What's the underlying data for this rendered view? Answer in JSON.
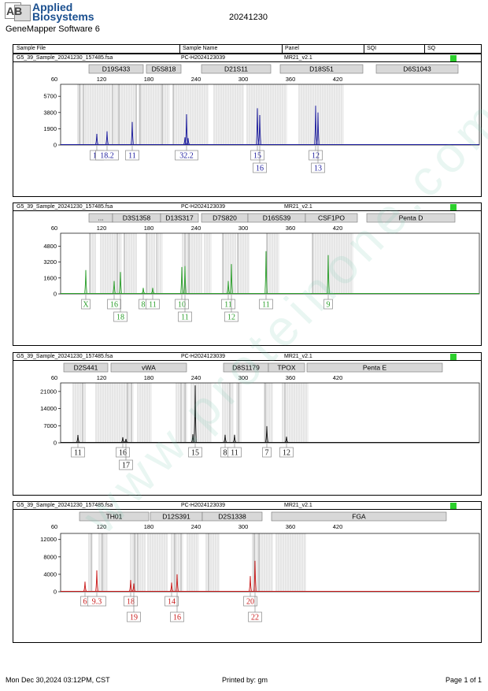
{
  "header": {
    "logo_text": "AB",
    "brand_line1": "Applied",
    "brand_line2": "Biosystems",
    "software": "GeneMapper Software 6",
    "date": "20241230",
    "columns": [
      "Sample File",
      "Sample Name",
      "Panel",
      "SQI",
      "SQ"
    ]
  },
  "footer": {
    "printed_on": "Mon Dec 30,2024 03:12PM, CST",
    "printed_by": "Printed by: gm",
    "page": "Page 1 of 1"
  },
  "watermark": "www.proteinone.com.cn",
  "chart_data": [
    {
      "type": "line",
      "sample_file": "G5_39_Sample_20241230_157485.fsa",
      "sample_name": "PC-H2024123039",
      "panel": "MR21_v2.1",
      "color": "#1a1a9c",
      "x_ticks": [
        60,
        120,
        180,
        240,
        300,
        360,
        420
      ],
      "y_ticks": [
        0,
        1900,
        3800,
        5700
      ],
      "ylim": [
        0,
        7100
      ],
      "markers": [
        "D19S433",
        "D5S818",
        "D21S11",
        "D18S51",
        "D6S1043"
      ],
      "peaks": [
        {
          "x": 114,
          "y": 1300
        },
        {
          "x": 127,
          "y": 1600
        },
        {
          "x": 159,
          "y": 2700
        },
        {
          "x": 226,
          "y": 900
        },
        {
          "x": 228,
          "y": 3600
        },
        {
          "x": 230,
          "y": 800
        },
        {
          "x": 318,
          "y": 4300
        },
        {
          "x": 321,
          "y": 3500
        },
        {
          "x": 392,
          "y": 4600
        },
        {
          "x": 395,
          "y": 3800
        }
      ],
      "alleles": [
        {
          "x": 114,
          "row": 0,
          "label": "15"
        },
        {
          "x": 127,
          "row": 0,
          "label": "18.2"
        },
        {
          "x": 159,
          "row": 0,
          "label": "11"
        },
        {
          "x": 228,
          "row": 0,
          "label": "32.2"
        },
        {
          "x": 318,
          "row": 0,
          "label": "15"
        },
        {
          "x": 321,
          "row": 1,
          "label": "16"
        },
        {
          "x": 392,
          "row": 0,
          "label": "12"
        },
        {
          "x": 395,
          "row": 1,
          "label": "13"
        }
      ]
    },
    {
      "type": "line",
      "sample_file": "G5_39_Sample_20241230_157485.fsa",
      "sample_name": "PC-H2024123039",
      "panel": "MR21_v2.1",
      "color": "#2a9e2a",
      "x_ticks": [
        60,
        120,
        180,
        240,
        300,
        360,
        420
      ],
      "y_ticks": [
        0,
        1600,
        3200,
        4800
      ],
      "ylim": [
        0,
        6100
      ],
      "markers": [
        "...",
        "D3S1358",
        "D13S317",
        "D7S820",
        "D16S539",
        "CSF1PO",
        "Penta D"
      ],
      "peaks": [
        {
          "x": 100,
          "y": 2400
        },
        {
          "x": 136,
          "y": 1300
        },
        {
          "x": 144,
          "y": 2200
        },
        {
          "x": 173,
          "y": 600
        },
        {
          "x": 185,
          "y": 600
        },
        {
          "x": 222,
          "y": 2700
        },
        {
          "x": 226,
          "y": 2800
        },
        {
          "x": 281,
          "y": 1300
        },
        {
          "x": 285,
          "y": 3000
        },
        {
          "x": 329,
          "y": 4300
        },
        {
          "x": 408,
          "y": 3900
        }
      ],
      "alleles": [
        {
          "x": 100,
          "row": 0,
          "label": "X"
        },
        {
          "x": 136,
          "row": 0,
          "label": "16"
        },
        {
          "x": 144,
          "row": 1,
          "label": "18"
        },
        {
          "x": 173,
          "row": 0,
          "label": "8"
        },
        {
          "x": 185,
          "row": 0,
          "label": "11"
        },
        {
          "x": 222,
          "row": 0,
          "label": "10"
        },
        {
          "x": 226,
          "row": 1,
          "label": "11"
        },
        {
          "x": 281,
          "row": 0,
          "label": "11"
        },
        {
          "x": 285,
          "row": 1,
          "label": "12"
        },
        {
          "x": 329,
          "row": 0,
          "label": "11"
        },
        {
          "x": 408,
          "row": 0,
          "label": "9"
        }
      ]
    },
    {
      "type": "line",
      "sample_file": "G5_39_Sample_20241230_157485.fsa",
      "sample_name": "PC-H2024123039",
      "panel": "MR21_v2.1",
      "color": "#111111",
      "x_ticks": [
        60,
        120,
        180,
        240,
        300,
        360,
        420
      ],
      "y_ticks": [
        0,
        7000,
        14000,
        21000
      ],
      "ylim": [
        0,
        24500
      ],
      "markers": [
        "D2S441",
        "vWA",
        "D8S1179",
        "TPOX",
        "Penta E"
      ],
      "peaks": [
        {
          "x": 90,
          "y": 3200
        },
        {
          "x": 147,
          "y": 2300
        },
        {
          "x": 151,
          "y": 1600
        },
        {
          "x": 236,
          "y": 3500
        },
        {
          "x": 239,
          "y": 23500
        },
        {
          "x": 277,
          "y": 3300
        },
        {
          "x": 289,
          "y": 3300
        },
        {
          "x": 330,
          "y": 6800
        },
        {
          "x": 355,
          "y": 2500
        }
      ],
      "alleles": [
        {
          "x": 90,
          "row": 0,
          "label": "11"
        },
        {
          "x": 147,
          "row": 0,
          "label": "16"
        },
        {
          "x": 151,
          "row": 1,
          "label": "17"
        },
        {
          "x": 239,
          "row": 0,
          "label": "15"
        },
        {
          "x": 277,
          "row": 0,
          "label": "8"
        },
        {
          "x": 289,
          "row": 0,
          "label": "11"
        },
        {
          "x": 330,
          "row": 0,
          "label": "7"
        },
        {
          "x": 355,
          "row": 0,
          "label": "12"
        }
      ]
    },
    {
      "type": "line",
      "sample_file": "G5_39_Sample_20241230_157485.fsa",
      "sample_name": "PC-H2024123039",
      "panel": "MR21_v2.1",
      "color": "#c91a1a",
      "x_ticks": [
        60,
        120,
        180,
        240,
        300,
        360,
        420
      ],
      "y_ticks": [
        0,
        4000,
        8000,
        12000
      ],
      "ylim": [
        0,
        13400
      ],
      "markers": [
        "TH01",
        "D12S391",
        "D2S1338",
        "FGA"
      ],
      "peaks": [
        {
          "x": 99,
          "y": 2300
        },
        {
          "x": 114,
          "y": 4900
        },
        {
          "x": 157,
          "y": 2700
        },
        {
          "x": 161,
          "y": 1900
        },
        {
          "x": 209,
          "y": 2100
        },
        {
          "x": 216,
          "y": 4000
        },
        {
          "x": 309,
          "y": 3600
        },
        {
          "x": 315,
          "y": 7100
        }
      ],
      "alleles": [
        {
          "x": 99,
          "row": 0,
          "label": "6"
        },
        {
          "x": 114,
          "row": 0,
          "label": "9.3"
        },
        {
          "x": 157,
          "row": 0,
          "label": "18"
        },
        {
          "x": 161,
          "row": 1,
          "label": "19"
        },
        {
          "x": 209,
          "row": 0,
          "label": "14"
        },
        {
          "x": 216,
          "row": 1,
          "label": "16"
        },
        {
          "x": 309,
          "row": 0,
          "label": "20"
        },
        {
          "x": 315,
          "row": 1,
          "label": "22"
        }
      ]
    }
  ]
}
